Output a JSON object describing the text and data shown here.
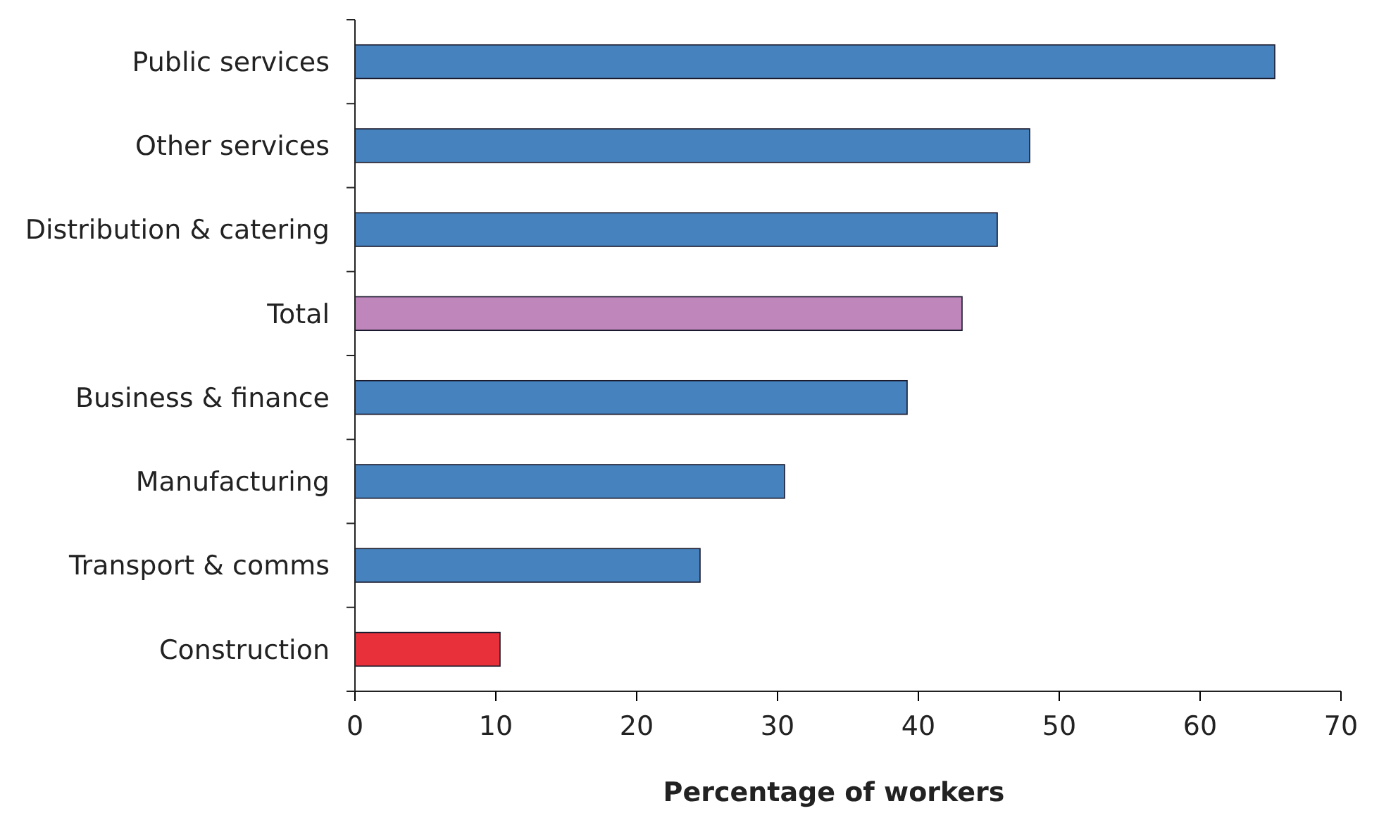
{
  "chart_data": {
    "type": "bar",
    "orientation": "horizontal",
    "xlabel": "Percentage of workers",
    "categories": [
      "Public services",
      "Other services",
      "Distribution & catering",
      "Total",
      "Business & finance",
      "Manufacturing",
      "Transport & comms",
      "Construction"
    ],
    "values": [
      65.3,
      47.9,
      45.6,
      43.1,
      39.2,
      30.5,
      24.5,
      10.3
    ],
    "colors": [
      "#4682bd",
      "#4682bd",
      "#4682bd",
      "#bf86bb",
      "#4682bd",
      "#4682bd",
      "#4682bd",
      "#e8303a"
    ],
    "xlim": [
      0,
      70
    ],
    "xticks": [
      0,
      10,
      20,
      30,
      40,
      50,
      60,
      70
    ],
    "grid": false
  }
}
